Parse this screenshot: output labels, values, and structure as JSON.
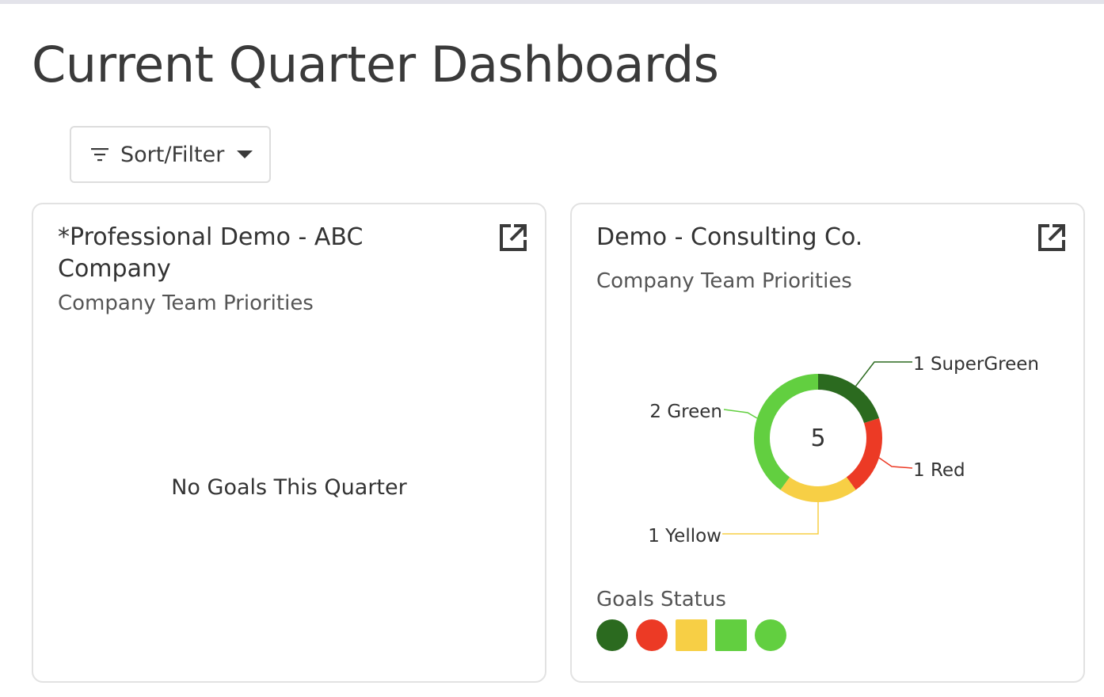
{
  "page": {
    "title": "Current Quarter Dashboards"
  },
  "toolbar": {
    "sort_filter_label": "Sort/Filter"
  },
  "dashboards": [
    {
      "title": "*Professional Demo - ABC Company",
      "subtitle": "Company Team Priorities",
      "empty_message": "No Goals This Quarter"
    },
    {
      "title": "Demo - Consulting Co.",
      "subtitle": "Company Team Priorities",
      "legend_title": "Goals Status",
      "legend_swatches": [
        {
          "shape": "circle",
          "color": "#2b6a1f"
        },
        {
          "shape": "circle",
          "color": "#ec3a25"
        },
        {
          "shape": "square",
          "color": "#f7cf45"
        },
        {
          "shape": "square",
          "color": "#62cf40"
        },
        {
          "shape": "circle",
          "color": "#62cf40"
        }
      ]
    }
  ],
  "chart_data": {
    "type": "pie",
    "donut": true,
    "center_label": "5",
    "total": 5,
    "slices": [
      {
        "name": "SuperGreen",
        "value": 1,
        "label": "1 SuperGreen",
        "color": "#2b6a1f"
      },
      {
        "name": "Red",
        "value": 1,
        "label": "1 Red",
        "color": "#ec3a25"
      },
      {
        "name": "Yellow",
        "value": 1,
        "label": "1 Yellow",
        "color": "#f7cf45"
      },
      {
        "name": "Green",
        "value": 2,
        "label": "2 Green",
        "color": "#62cf40"
      }
    ]
  }
}
